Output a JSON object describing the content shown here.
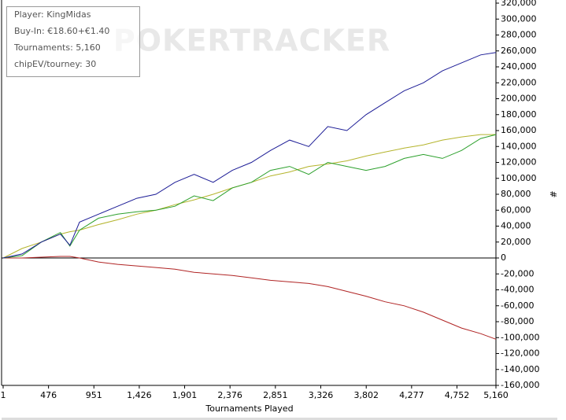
{
  "chart_data": {
    "type": "line",
    "watermark": "POKERTRACKER",
    "info": [
      "Player: KingMidas",
      "Buy-In: €18.60+€1.40",
      "Tournaments: 5,160",
      "chipEV/tourney: 30"
    ],
    "x_label": "Tournaments Played",
    "y_label": "#",
    "x": [
      1,
      200,
      400,
      600,
      700,
      800,
      1000,
      1200,
      1400,
      1600,
      1800,
      2000,
      2200,
      2400,
      2600,
      2800,
      3000,
      3200,
      3400,
      3600,
      3800,
      4000,
      4200,
      4400,
      4600,
      4800,
      5000,
      5160
    ],
    "series": [
      {
        "color": "#b02424",
        "values": [
          0,
          0,
          1000,
          2000,
          2000,
          0,
          -5000,
          -8000,
          -10000,
          -12000,
          -14000,
          -18000,
          -20000,
          -22000,
          -25000,
          -28000,
          -30000,
          -32000,
          -36000,
          -42000,
          -48000,
          -55000,
          -60000,
          -68000,
          -78000,
          -88000,
          -95000,
          -102000
        ]
      },
      {
        "color": "#b4b42c",
        "values": [
          0,
          12000,
          20000,
          30000,
          33000,
          35000,
          42000,
          48000,
          55000,
          60000,
          67000,
          73000,
          80000,
          88000,
          95000,
          103000,
          108000,
          115000,
          118000,
          122000,
          128000,
          133000,
          138000,
          142000,
          148000,
          152000,
          155000,
          155000
        ]
      },
      {
        "color": "#2ca02c",
        "values": [
          0,
          3000,
          20000,
          32000,
          15000,
          35000,
          50000,
          55000,
          58000,
          60000,
          65000,
          78000,
          72000,
          88000,
          95000,
          110000,
          115000,
          105000,
          120000,
          115000,
          110000,
          115000,
          125000,
          130000,
          125000,
          135000,
          150000,
          155000
        ]
      },
      {
        "color": "#1c1c96",
        "values": [
          0,
          5000,
          20000,
          30000,
          16000,
          45000,
          55000,
          65000,
          75000,
          80000,
          95000,
          105000,
          95000,
          110000,
          120000,
          135000,
          148000,
          140000,
          165000,
          160000,
          180000,
          195000,
          210000,
          220000,
          235000,
          245000,
          255000,
          258000
        ]
      }
    ],
    "xlim": [
      1,
      5160
    ],
    "xticks": [
      1,
      {
        "value": 476,
        "label": "476"
      },
      {
        "value": 951,
        "label": "951"
      },
      {
        "value": 1426,
        "label": "1,426"
      },
      {
        "value": 1901,
        "label": "1,901"
      },
      {
        "value": 2376,
        "label": "2,376"
      },
      {
        "value": 2851,
        "label": "2,851"
      },
      {
        "value": 3326,
        "label": "3,326"
      },
      {
        "value": 3802,
        "label": "3,802"
      },
      {
        "value": 4277,
        "label": "4,277"
      },
      {
        "value": 4752,
        "label": "4,752"
      },
      {
        "value": 5160,
        "label": "5,160"
      }
    ],
    "ylim": [
      -160000,
      320000
    ],
    "yticks": [
      {
        "value": 320000,
        "label": "320,000"
      },
      {
        "value": 300000,
        "label": "300,000"
      },
      {
        "value": 280000,
        "label": "280,000"
      },
      {
        "value": 260000,
        "label": "260,000"
      },
      {
        "value": 240000,
        "label": "240,000"
      },
      {
        "value": 220000,
        "label": "220,000"
      },
      {
        "value": 200000,
        "label": "200,000"
      },
      {
        "value": 180000,
        "label": "180,000"
      },
      {
        "value": 160000,
        "label": "160,000"
      },
      {
        "value": 140000,
        "label": "140,000"
      },
      {
        "value": 120000,
        "label": "120,000"
      },
      {
        "value": 100000,
        "label": "100,000"
      },
      {
        "value": 80000,
        "label": "80,000"
      },
      {
        "value": 60000,
        "label": "60,000"
      },
      {
        "value": 40000,
        "label": "40,000"
      },
      {
        "value": 20000,
        "label": "20,000"
      },
      0,
      {
        "value": -20000,
        "label": "-20,000"
      },
      {
        "value": -40000,
        "label": "-40,000"
      },
      {
        "value": -60000,
        "label": "-60,000"
      },
      {
        "value": -80000,
        "label": "-80,000"
      },
      {
        "value": -100000,
        "label": "-100,000"
      },
      {
        "value": -120000,
        "label": "-120,000"
      },
      {
        "value": -140000,
        "label": "-140,000"
      },
      {
        "value": -160000,
        "label": "-160,000"
      }
    ]
  }
}
